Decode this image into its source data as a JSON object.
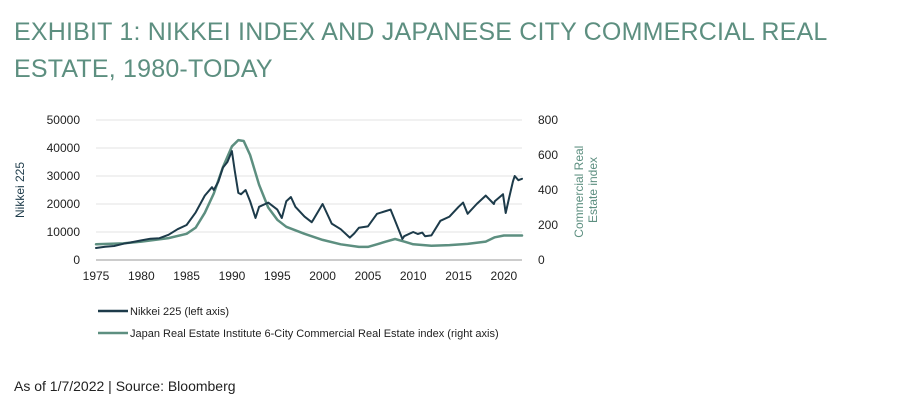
{
  "title": "EXHIBIT 1: NIKKEI INDEX AND JAPANESE CITY COMMERCIAL REAL ESTATE, 1980-TODAY",
  "source": "As of 1/7/2022 | Source: Bloomberg",
  "colors": {
    "nikkei": "#1d3b4a",
    "realestate": "#5d8f80",
    "grid": "#e3e3e3",
    "title": "#5d8f80"
  },
  "chart_data": {
    "type": "line",
    "xlim": [
      1975,
      2022
    ],
    "x_ticks": [
      1975,
      1980,
      1985,
      1990,
      1995,
      2000,
      2005,
      2010,
      2015,
      2020
    ],
    "left_axis": {
      "label": "Nikkei 225",
      "ylim": [
        0,
        50000
      ],
      "ticks": [
        0,
        10000,
        20000,
        30000,
        40000,
        50000
      ]
    },
    "right_axis": {
      "label_lines": [
        "Commercial Real",
        "Estate index"
      ],
      "ylim": [
        0,
        800
      ],
      "ticks": [
        0,
        200,
        400,
        600,
        800
      ]
    },
    "grid": "horizontal",
    "legend_position": "bottom-left",
    "series": [
      {
        "name": "Nikkei 225 (left axis)",
        "axis": "left",
        "points": [
          [
            1975,
            4300
          ],
          [
            1976,
            4700
          ],
          [
            1977,
            5000
          ],
          [
            1978,
            5800
          ],
          [
            1979,
            6400
          ],
          [
            1980,
            7000
          ],
          [
            1981,
            7600
          ],
          [
            1982,
            7800
          ],
          [
            1983,
            9000
          ],
          [
            1984,
            11000
          ],
          [
            1985,
            12500
          ],
          [
            1986,
            17000
          ],
          [
            1987,
            23000
          ],
          [
            1987.8,
            26000
          ],
          [
            1988,
            25000
          ],
          [
            1988.5,
            28000
          ],
          [
            1989,
            33000
          ],
          [
            1989.5,
            35000
          ],
          [
            1989.99,
            38900
          ],
          [
            1990.3,
            32000
          ],
          [
            1990.7,
            24000
          ],
          [
            1991,
            23500
          ],
          [
            1991.5,
            25000
          ],
          [
            1992,
            21000
          ],
          [
            1992.6,
            15000
          ],
          [
            1993,
            19000
          ],
          [
            1994,
            20500
          ],
          [
            1995,
            18000
          ],
          [
            1995.5,
            15000
          ],
          [
            1996,
            21000
          ],
          [
            1996.5,
            22500
          ],
          [
            1997,
            19000
          ],
          [
            1998,
            15500
          ],
          [
            1998.8,
            13500
          ],
          [
            1999,
            14500
          ],
          [
            2000,
            20000
          ],
          [
            2001,
            13000
          ],
          [
            2002,
            11000
          ],
          [
            2003,
            8000
          ],
          [
            2003.5,
            9500
          ],
          [
            2004,
            11500
          ],
          [
            2005,
            12000
          ],
          [
            2006,
            16500
          ],
          [
            2007,
            17500
          ],
          [
            2007.5,
            18000
          ],
          [
            2008,
            14000
          ],
          [
            2008.8,
            7500
          ],
          [
            2009,
            8500
          ],
          [
            2010,
            10000
          ],
          [
            2010.5,
            9300
          ],
          [
            2011,
            9800
          ],
          [
            2011.3,
            8500
          ],
          [
            2012,
            8800
          ],
          [
            2013,
            14000
          ],
          [
            2014,
            15500
          ],
          [
            2015,
            19000
          ],
          [
            2015.5,
            20500
          ],
          [
            2016,
            16500
          ],
          [
            2017,
            20000
          ],
          [
            2018,
            23000
          ],
          [
            2018.9,
            20000
          ],
          [
            2019,
            21000
          ],
          [
            2019.9,
            23500
          ],
          [
            2020.2,
            16800
          ],
          [
            2020.6,
            22500
          ],
          [
            2021,
            28000
          ],
          [
            2021.2,
            30000
          ],
          [
            2021.6,
            28500
          ],
          [
            2022,
            29000
          ]
        ]
      },
      {
        "name": "Japan Real Estate Institute 6-City Commercial Real Estate index (right axis)",
        "axis": "right",
        "points": [
          [
            1975,
            90
          ],
          [
            1978,
            95
          ],
          [
            1980,
            105
          ],
          [
            1983,
            125
          ],
          [
            1985,
            150
          ],
          [
            1986,
            185
          ],
          [
            1987,
            270
          ],
          [
            1988,
            380
          ],
          [
            1989,
            530
          ],
          [
            1990,
            650
          ],
          [
            1990.7,
            685
          ],
          [
            1991.3,
            680
          ],
          [
            1992,
            600
          ],
          [
            1993,
            430
          ],
          [
            1994,
            300
          ],
          [
            1995,
            230
          ],
          [
            1996,
            190
          ],
          [
            1998,
            150
          ],
          [
            2000,
            115
          ],
          [
            2002,
            90
          ],
          [
            2004,
            75
          ],
          [
            2005,
            75
          ],
          [
            2006,
            90
          ],
          [
            2007,
            105
          ],
          [
            2008,
            120
          ],
          [
            2009,
            105
          ],
          [
            2010,
            90
          ],
          [
            2012,
            82
          ],
          [
            2014,
            85
          ],
          [
            2016,
            92
          ],
          [
            2018,
            105
          ],
          [
            2019,
            130
          ],
          [
            2020,
            140
          ],
          [
            2022,
            140
          ]
        ]
      }
    ]
  }
}
